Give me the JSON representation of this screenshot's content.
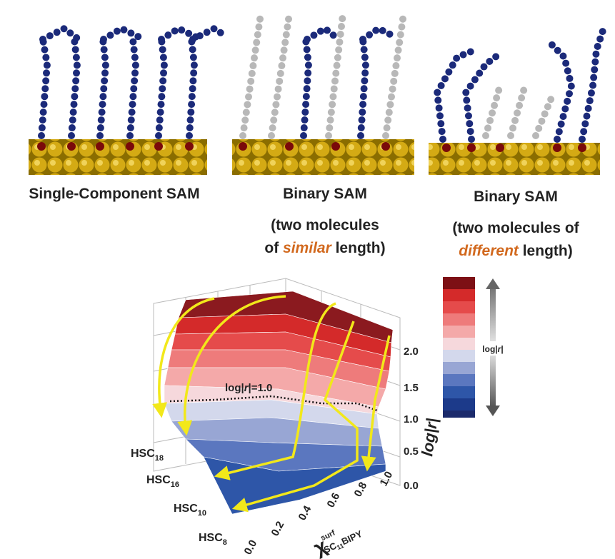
{
  "panels": [
    {
      "title": "Single-Component SAM"
    },
    {
      "title": "Binary SAM",
      "line1": "(two molecules",
      "line2_pre": "of ",
      "line2_em": "similar",
      "line2_post": " length)"
    },
    {
      "title": "Binary SAM",
      "line1": "(two molecules of",
      "line2_em": "different",
      "line2_post": " length)"
    }
  ],
  "surface_plot": {
    "annotation": {
      "pre": "log|",
      "italic": "r",
      "post": "|=1.0"
    },
    "colorbar_label": {
      "pre": "log|",
      "italic": "r",
      "post": "|"
    },
    "z_label": {
      "pre": "log|",
      "italic": "r",
      "post": "|"
    },
    "z_ticks": [
      "0.0",
      "0.5",
      "1.0",
      "1.5",
      "2.0"
    ],
    "x_ticks": [
      "0.0",
      "0.2",
      "0.4",
      "0.6",
      "0.8",
      "1.0"
    ],
    "x_label": {
      "symbol": "χ",
      "sup": "surf",
      "sub_pre": "SC",
      "sub_num": "11",
      "sub_post": "BIPY"
    },
    "y_labels": [
      {
        "base": "HSC",
        "sub": "18"
      },
      {
        "base": "HSC",
        "sub": "16"
      },
      {
        "base": "HSC",
        "sub": "10"
      },
      {
        "base": "HSC",
        "sub": "8"
      }
    ]
  }
}
